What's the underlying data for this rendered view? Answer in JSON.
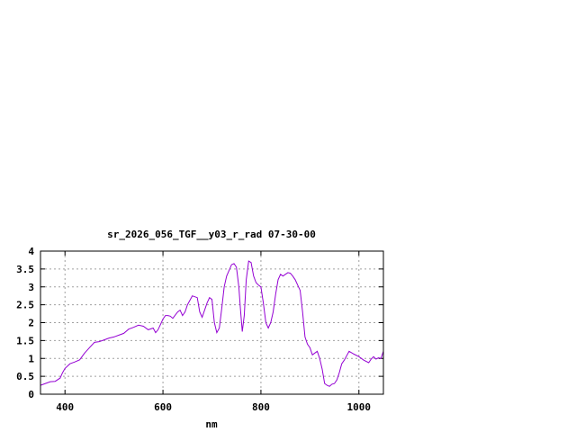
{
  "chart_data": {
    "type": "line",
    "title": "sr_2026_056_TGF__y03_r_rad 07-30-00",
    "xlabel": "nm",
    "ylabel": "",
    "xlim": [
      350,
      1050
    ],
    "ylim": [
      0,
      4
    ],
    "xticks": [
      400,
      600,
      800,
      1000
    ],
    "xtick_labels": [
      "400",
      "600",
      "800",
      "1000"
    ],
    "yticks": [
      0,
      0.5,
      1,
      1.5,
      2,
      2.5,
      3,
      3.5,
      4
    ],
    "ytick_labels": [
      "0",
      "0.5",
      "1",
      "1.5",
      "2",
      "2.5",
      "3",
      "3.5",
      "4"
    ],
    "grid": true,
    "series": [
      {
        "color": "#9400d3",
        "x": [
          350,
          360,
          370,
          380,
          390,
          395,
          400,
          410,
          420,
          430,
          440,
          450,
          460,
          470,
          480,
          490,
          500,
          510,
          520,
          530,
          540,
          550,
          560,
          570,
          580,
          585,
          590,
          600,
          605,
          610,
          615,
          620,
          630,
          635,
          640,
          645,
          650,
          660,
          670,
          675,
          680,
          690,
          695,
          700,
          705,
          710,
          715,
          720,
          725,
          730,
          740,
          745,
          750,
          755,
          758,
          762,
          766,
          770,
          775,
          780,
          785,
          790,
          795,
          800,
          805,
          810,
          815,
          820,
          825,
          830,
          835,
          840,
          845,
          850,
          855,
          860,
          865,
          870,
          880,
          885,
          890,
          895,
          900,
          905,
          910,
          915,
          920,
          925,
          930,
          935,
          940,
          945,
          950,
          955,
          960,
          965,
          970,
          980,
          990,
          1000,
          1010,
          1020,
          1025,
          1030,
          1035,
          1040,
          1045,
          1050
        ],
        "y": [
          0.25,
          0.3,
          0.35,
          0.36,
          0.45,
          0.6,
          0.72,
          0.85,
          0.9,
          0.96,
          1.15,
          1.3,
          1.45,
          1.47,
          1.52,
          1.57,
          1.6,
          1.65,
          1.7,
          1.82,
          1.87,
          1.93,
          1.9,
          1.8,
          1.85,
          1.72,
          1.8,
          2.1,
          2.2,
          2.2,
          2.18,
          2.12,
          2.3,
          2.35,
          2.2,
          2.3,
          2.5,
          2.75,
          2.7,
          2.3,
          2.15,
          2.55,
          2.7,
          2.65,
          2.0,
          1.72,
          1.85,
          2.4,
          3.0,
          3.3,
          3.62,
          3.65,
          3.55,
          3.0,
          2.4,
          1.75,
          2.2,
          3.2,
          3.72,
          3.68,
          3.3,
          3.12,
          3.05,
          3.0,
          2.55,
          2.0,
          1.85,
          2.0,
          2.3,
          2.8,
          3.2,
          3.35,
          3.3,
          3.35,
          3.4,
          3.38,
          3.3,
          3.2,
          2.9,
          2.3,
          1.6,
          1.4,
          1.3,
          1.1,
          1.15,
          1.2,
          1.0,
          0.7,
          0.3,
          0.25,
          0.22,
          0.28,
          0.3,
          0.4,
          0.6,
          0.85,
          0.95,
          1.2,
          1.12,
          1.05,
          0.95,
          0.88,
          0.98,
          1.05,
          0.98,
          1.02,
          1.0,
          1.2
        ]
      }
    ]
  }
}
